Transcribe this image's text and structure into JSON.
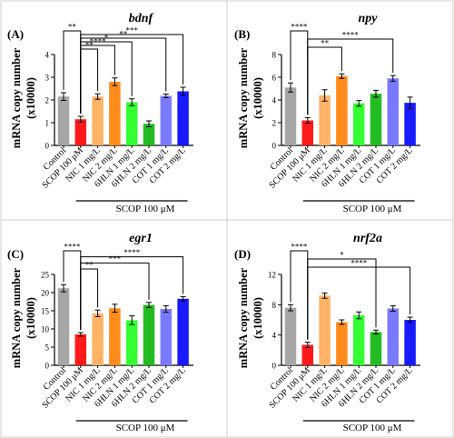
{
  "chart_data": [
    {
      "type": "bar",
      "panel_label": "(A)",
      "title": "bdnf",
      "ylabel_line1": "mRNA copy number",
      "ylabel_line2": "(x10000)",
      "ylim": [
        0,
        4
      ],
      "yticks": [
        0,
        1,
        2,
        3,
        4
      ],
      "categories": [
        "Control",
        "SCOP 100 μM",
        "NIC 1 mg/L",
        "NIC 2 mg/L",
        "6HLN 1 mg/L",
        "6HLN 2 mg/L",
        "COT 1 mg/L",
        "COT 2 mg/L"
      ],
      "values": [
        2.15,
        1.15,
        2.15,
        2.8,
        1.9,
        0.95,
        2.18,
        2.38
      ],
      "errors": [
        0.17,
        0.13,
        0.12,
        0.17,
        0.15,
        0.13,
        0.08,
        0.18
      ],
      "group_label": "SCOP 100 μM",
      "significance": [
        {
          "from": 0,
          "to": 1,
          "label": "**"
        },
        {
          "from": 1,
          "to": 7,
          "label": "***"
        },
        {
          "from": 1,
          "to": 6,
          "label": "**"
        },
        {
          "from": 1,
          "to": 4,
          "label": "*"
        },
        {
          "from": 1,
          "to": 3,
          "label": "****"
        },
        {
          "from": 1,
          "to": 2,
          "label": "**"
        }
      ]
    },
    {
      "type": "bar",
      "panel_label": "(B)",
      "title": "npy",
      "ylabel_line1": "mRNA copy number",
      "ylabel_line2": "(x10000)",
      "ylim": [
        0,
        8
      ],
      "yticks": [
        0,
        2,
        4,
        6,
        8
      ],
      "categories": [
        "Control",
        "SCOP 100 μM",
        "NIC 1 mg/L",
        "NIC 2 mg/L",
        "6HLN 1 mg/L",
        "6HLN 2 mg/L",
        "COT 1 mg/L",
        "COT 2 mg/L"
      ],
      "values": [
        5.1,
        2.2,
        4.4,
        6.1,
        3.7,
        4.55,
        5.9,
        3.75
      ],
      "errors": [
        0.4,
        0.25,
        0.5,
        0.2,
        0.25,
        0.3,
        0.25,
        0.5
      ],
      "group_label": "SCOP 100 μM",
      "significance": [
        {
          "from": 0,
          "to": 1,
          "label": "****"
        },
        {
          "from": 1,
          "to": 6,
          "label": "****"
        },
        {
          "from": 1,
          "to": 3,
          "label": "**"
        }
      ]
    },
    {
      "type": "bar",
      "panel_label": "(C)",
      "title": "egr1",
      "ylabel_line1": "mRNA copy number",
      "ylabel_line2": "(x10000)",
      "ylim": [
        0,
        25
      ],
      "yticks": [
        0,
        5,
        10,
        15,
        20,
        25
      ],
      "categories": [
        "Control",
        "SCOP 100 μM",
        "NIC 1 mg/L",
        "NIC 2 mg/L",
        "6HLN 1 mg/L",
        "6HLN 2 mg/L",
        "COT 1 mg/L",
        "COT 2 mg/L"
      ],
      "values": [
        21.2,
        8.5,
        14.3,
        15.7,
        12.4,
        16.6,
        15.5,
        18.3
      ],
      "errors": [
        1.0,
        0.5,
        0.9,
        1.1,
        1.2,
        0.7,
        0.9,
        0.6
      ],
      "group_label": "SCOP 100 μM",
      "significance": [
        {
          "from": 0,
          "to": 1,
          "label": "****"
        },
        {
          "from": 1,
          "to": 7,
          "label": "****"
        },
        {
          "from": 1,
          "to": 5,
          "label": "***"
        },
        {
          "from": 1,
          "to": 2,
          "label": "**"
        }
      ]
    },
    {
      "type": "bar",
      "panel_label": "(D)",
      "title": "nrf2a",
      "ylabel_line1": "mRNA copy number",
      "ylabel_line2": "(x10000)",
      "ylim": [
        0,
        12
      ],
      "yticks": [
        0,
        4,
        8,
        12
      ],
      "categories": [
        "Control",
        "SCOP 100 μM",
        "NIC 1 mg/L",
        "NIC 2 mg/L",
        "6HLN 1 mg/L",
        "6HLN 2 mg/L",
        "COT 1 mg/L",
        "COT 2 mg/L"
      ],
      "values": [
        7.6,
        2.7,
        9.2,
        5.7,
        6.6,
        4.4,
        7.5,
        6.0
      ],
      "errors": [
        0.4,
        0.35,
        0.35,
        0.3,
        0.45,
        0.25,
        0.35,
        0.35
      ],
      "group_label": "SCOP 100 μM",
      "significance": [
        {
          "from": 0,
          "to": 1,
          "label": "****"
        },
        {
          "from": 1,
          "to": 5,
          "label": "*"
        },
        {
          "from": 1,
          "to": 7,
          "label": "****"
        }
      ]
    }
  ],
  "bar_colors": [
    "#a6a6a6",
    "#ff1a1a",
    "#ffb366",
    "#ff8c1a",
    "#33ff33",
    "#22bb22",
    "#7a7aff",
    "#1a1aff"
  ]
}
